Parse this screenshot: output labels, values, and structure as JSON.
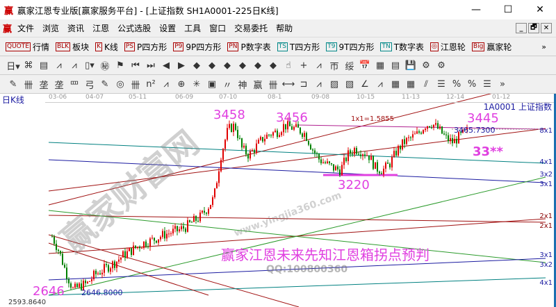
{
  "window": {
    "title": "赢家江恩专业版[赢家服务平台] - [上证指数  SH1A0001-225日K线]",
    "logo": "赢",
    "min": "—",
    "max": "☐",
    "close": "✕"
  },
  "menu": [
    "文件",
    "浏览",
    "资讯",
    "江恩",
    "公式选股",
    "设置",
    "工具",
    "窗口",
    "交易委托",
    "帮助"
  ],
  "mdi": [
    "_",
    "🗗",
    "✕"
  ],
  "toolbar1": [
    {
      "icon": "QUOTE",
      "label": "行情"
    },
    {
      "icon": "BLK",
      "label": "板块"
    },
    {
      "icon": "K",
      "label": "K线"
    },
    {
      "icon": "PS",
      "label": "P四方形"
    },
    {
      "icon": "P9",
      "label": "9P四方形"
    },
    {
      "icon": "PN",
      "label": "P数字表"
    },
    {
      "icon": "TS",
      "label": "T四方形"
    },
    {
      "icon": "T9",
      "label": "9T四方形"
    },
    {
      "icon": "TN",
      "label": "T数字表"
    },
    {
      "icon": "◎",
      "label": "江恩轮"
    },
    {
      "icon": "Big",
      "label": "赢家轮"
    }
  ],
  "toolbar1_more": "»",
  "toolbar2": [
    "日▾",
    "⌘",
    "▤",
    "⩘",
    "⩘",
    "▯▾",
    "㊙",
    "⚑",
    "⏮",
    "⏭",
    "◀",
    "▶",
    "◆",
    "◆",
    "◆",
    "◆",
    "◆",
    "◆",
    "☝",
    "+",
    "⩘",
    "帀",
    "绥",
    "📅",
    "▦",
    "▤",
    "💾",
    "⚙",
    "⚙"
  ],
  "toolbar3": [
    "✎",
    "卌",
    "垄",
    "垄",
    "罒",
    "弓",
    "✎",
    "◎",
    "卌",
    "n²",
    "⩘",
    "⊕",
    "✳",
    "▣",
    "〃",
    "神",
    "赢",
    "卌",
    "⟷",
    "⊐",
    "⩘",
    "▨",
    "▧",
    "∠",
    "⩘",
    "▦",
    "▦",
    "⫽",
    "☰",
    "%",
    "%",
    "☰",
    "»"
  ],
  "chart": {
    "period_label": "日K线",
    "symbol_label": "1A0001  上证指数",
    "date_ticks": [
      "03-06",
      "04-07",
      "05-11",
      "06-09",
      "07-10",
      "08-1",
      "09-08",
      "10-15",
      "11-13",
      "12-14",
      "01-12"
    ],
    "annotations": {
      "high1": "3458",
      "high2": "3456",
      "low_mid": "3220",
      "high3": "3445",
      "target": "33**",
      "low": "2646",
      "last_price": "3465.7300",
      "low_price": "2646.8000",
      "min_price": "2593.8640",
      "gann_ratio": "1x1=1.5855"
    },
    "gann_labels": [
      "8x1",
      "4x1",
      "3x2",
      "3x1",
      "2x1",
      "2x1",
      "3x1",
      "3x2",
      "4x1"
    ],
    "caption": "赢家江恩未来先知江恩箱拐点预判",
    "watermark": "赢家财富网",
    "watermark_url": "www.yingjia360.com",
    "qq": "QQ:100800360",
    "colors": {
      "up": "#e00000",
      "down": "#008000",
      "annot": "#e040e0",
      "axis": "#1a1aa0"
    }
  },
  "chart_data": {
    "type": "candlestick",
    "price_range": [
      2593.864,
      3465.73
    ],
    "closes": [
      2920,
      2850,
      2750,
      2670,
      2690,
      2700,
      2740,
      2760,
      2780,
      2800,
      2830,
      2850,
      2870,
      2890,
      2900,
      2915,
      2930,
      2940,
      2950,
      2965,
      2990,
      3010,
      3050,
      3100,
      3300,
      3420,
      3440,
      3330,
      3300,
      3340,
      3380,
      3400,
      3410,
      3440,
      3430,
      3420,
      3400,
      3330,
      3280,
      3260,
      3240,
      3230,
      3300,
      3330,
      3320,
      3300,
      3240,
      3230,
      3260,
      3320,
      3360,
      3380,
      3400,
      3440,
      3450,
      3420,
      3380,
      3360,
      3390,
      3410
    ]
  }
}
